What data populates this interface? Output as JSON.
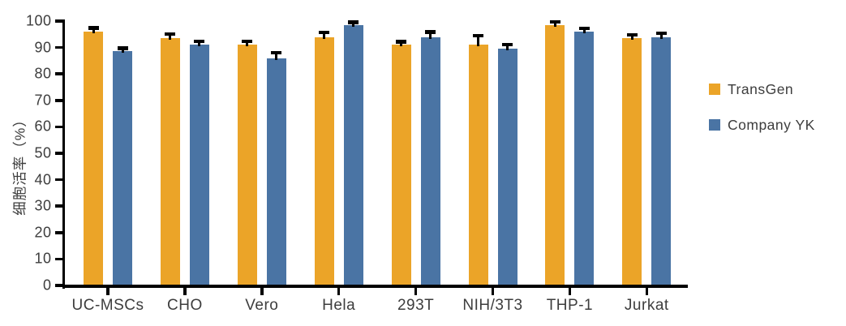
{
  "page": {
    "background": "#ffffff"
  },
  "chart_data": {
    "type": "bar",
    "title": "",
    "xlabel": "",
    "ylabel": "细胞活率（%）",
    "ylim": [
      0,
      100
    ],
    "ytick_step": 10,
    "yticks": [
      0,
      10,
      20,
      30,
      40,
      50,
      60,
      70,
      80,
      90,
      100
    ],
    "categories": [
      "UC-MSCs",
      "CHO",
      "Vero",
      "Hela",
      "293T",
      "NIH/3T3",
      "THP-1",
      "Jurkat"
    ],
    "series": [
      {
        "name": "TransGen",
        "color": "#EBA428",
        "values": [
          96,
          93.5,
          91,
          94,
          91,
          91,
          98.5,
          93.5
        ],
        "errors": [
          0.8,
          1.0,
          0.8,
          1.2,
          0.6,
          3.0,
          0.6,
          0.8
        ]
      },
      {
        "name": "Company YK",
        "color": "#4A74A4",
        "values": [
          88.5,
          91,
          86,
          98.5,
          94,
          89.5,
          96,
          94
        ],
        "errors": [
          0.7,
          0.8,
          1.5,
          0.5,
          1.3,
          1.0,
          0.7,
          0.8
        ]
      }
    ],
    "error_bar_color": "#000000",
    "grid": false,
    "legend_position": "right"
  }
}
